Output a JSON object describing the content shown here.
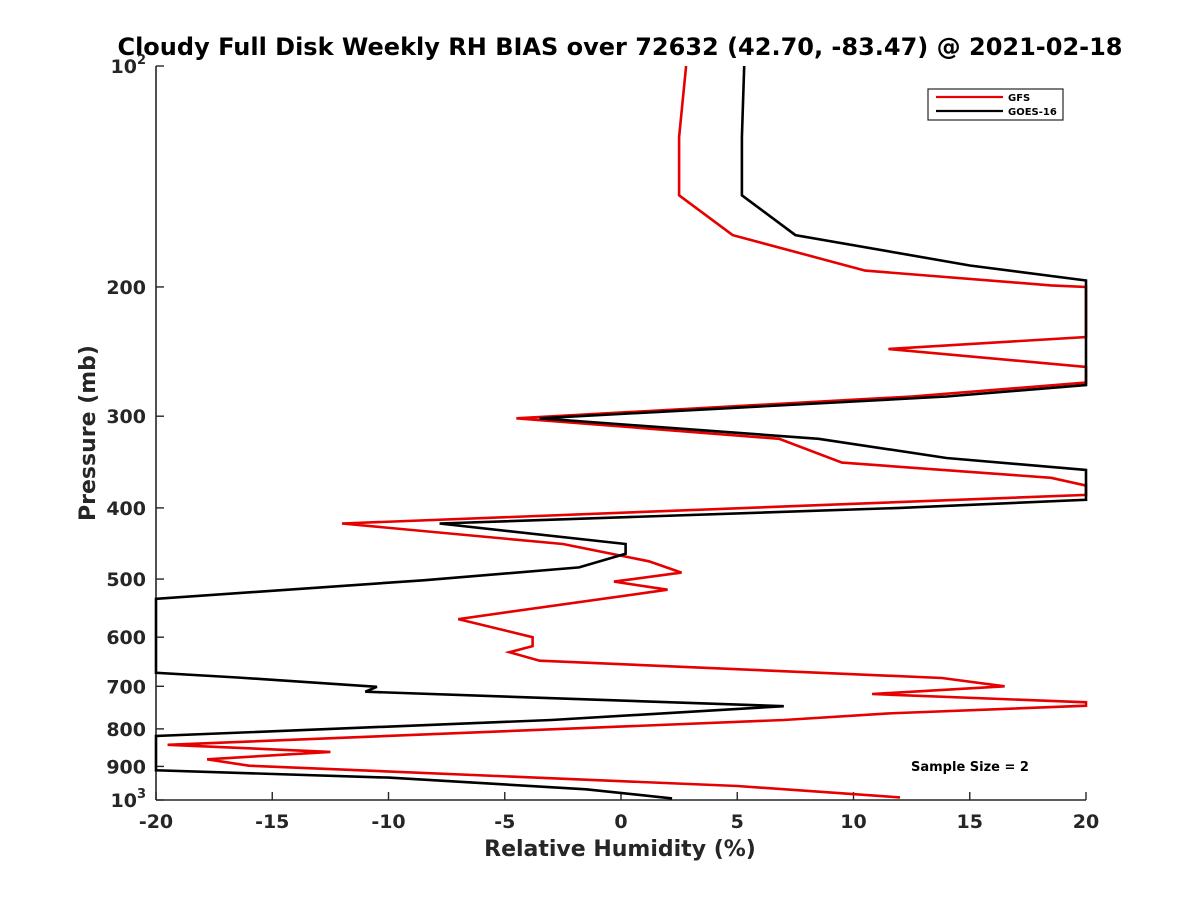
{
  "chart_data": {
    "type": "line",
    "title": "Cloudy Full Disk Weekly RH BIAS over 72632 (42.70, -83.47) @ 2021-02-18",
    "xlabel": "Relative Humidity (%)",
    "ylabel": "Pressure (mb)",
    "xlim": [
      -20,
      20
    ],
    "ylim": [
      100,
      1000
    ],
    "yscale": "log",
    "yreversed": true,
    "grid": false,
    "legend_position": "top-right",
    "x_ticks": [
      "-20",
      "-15",
      "-10",
      "-5",
      "0",
      "5",
      "10",
      "15",
      "20"
    ],
    "y_ticks": [
      {
        "base": "10",
        "exp": "2",
        "value": 100
      },
      {
        "label": "200",
        "value": 200
      },
      {
        "label": "300",
        "value": 300
      },
      {
        "label": "400",
        "value": 400
      },
      {
        "label": "500",
        "value": 500
      },
      {
        "label": "600",
        "value": 600
      },
      {
        "label": "700",
        "value": 700
      },
      {
        "label": "800",
        "value": 800
      },
      {
        "label": "900",
        "value": 900
      },
      {
        "base": "10",
        "exp": "3",
        "value": 1000
      }
    ],
    "annotation": "Sample Size = 2",
    "series": [
      {
        "name": "GFS",
        "color": "#e60000",
        "points": [
          [
            2.8,
            100
          ],
          [
            2.5,
            125
          ],
          [
            2.5,
            150
          ],
          [
            4.8,
            170
          ],
          [
            10.5,
            190
          ],
          [
            18.5,
            199
          ],
          [
            20,
            200
          ],
          [
            20,
            234
          ],
          [
            11.5,
            243
          ],
          [
            20,
            257
          ],
          [
            20,
            270
          ],
          [
            12.5,
            282
          ],
          [
            -4.5,
            302
          ],
          [
            6.8,
            322
          ],
          [
            9.5,
            347
          ],
          [
            18.5,
            364
          ],
          [
            20,
            373
          ],
          [
            20,
            384
          ],
          [
            -12,
            420
          ],
          [
            -2.5,
            448
          ],
          [
            1.2,
            473
          ],
          [
            2.6,
            490
          ],
          [
            -0.3,
            504
          ],
          [
            2.0,
            517
          ],
          [
            -7.0,
            567
          ],
          [
            -3.8,
            600
          ],
          [
            -3.8,
            617
          ],
          [
            -4.8,
            629
          ],
          [
            -3.5,
            646
          ],
          [
            13.8,
            682
          ],
          [
            16.5,
            700
          ],
          [
            10.8,
            717
          ],
          [
            20,
            736
          ],
          [
            20,
            744
          ],
          [
            11.5,
            762
          ],
          [
            7.0,
            778
          ],
          [
            -19.5,
            841
          ],
          [
            -12.5,
            860
          ],
          [
            -17.8,
            880
          ],
          [
            -16.0,
            898
          ],
          [
            5.0,
            957
          ],
          [
            12.0,
            992
          ]
        ]
      },
      {
        "name": "GOES-16",
        "color": "#000000",
        "points": [
          [
            5.3,
            100
          ],
          [
            5.2,
            125
          ],
          [
            5.2,
            150
          ],
          [
            7.5,
            170
          ],
          [
            15.0,
            187
          ],
          [
            20,
            196
          ],
          [
            20,
            272
          ],
          [
            14.0,
            282
          ],
          [
            -3.5,
            302
          ],
          [
            8.5,
            322
          ],
          [
            14.0,
            342
          ],
          [
            20,
            355
          ],
          [
            20,
            390
          ],
          [
            12.0,
            400
          ],
          [
            -7.8,
            420
          ],
          [
            0.2,
            448
          ],
          [
            0.2,
            462
          ],
          [
            -1.8,
            482
          ],
          [
            -8.5,
            502
          ],
          [
            -20,
            532
          ],
          [
            -20,
            671
          ],
          [
            -16.5,
            681
          ],
          [
            -10.5,
            701
          ],
          [
            -11.0,
            712
          ],
          [
            7.0,
            745
          ],
          [
            -3.0,
            778
          ],
          [
            -20,
            818
          ],
          [
            -20,
            911
          ],
          [
            -10.0,
            932
          ],
          [
            -1.5,
            967
          ],
          [
            2.2,
            995
          ]
        ]
      }
    ]
  }
}
